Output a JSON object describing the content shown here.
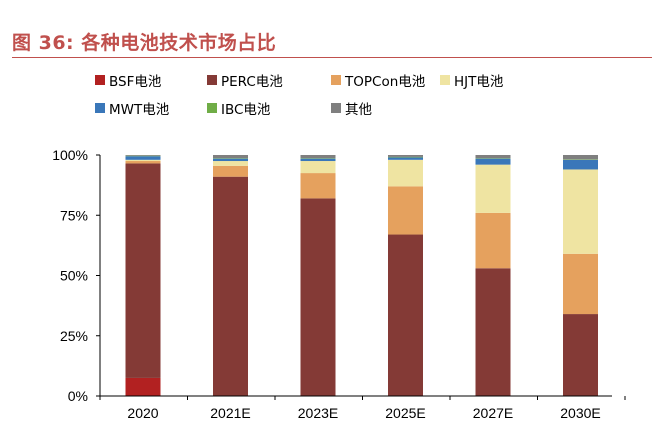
{
  "header": {
    "figure_title": "图 36: 各种电池技术市场占比"
  },
  "colors": {
    "title": "#c0504d",
    "axis": "#000000"
  },
  "chart_data": {
    "type": "bar",
    "stacked": true,
    "categories": [
      "2020",
      "2021E",
      "2023E",
      "2025E",
      "2027E",
      "2030E"
    ],
    "y_ticks": [
      "0%",
      "25%",
      "50%",
      "75%",
      "100%"
    ],
    "ylim": [
      0,
      100
    ],
    "grid": false,
    "legend_position": "top-left",
    "series": [
      {
        "name": "BSF电池",
        "color": "#b22121",
        "values": [
          7.5,
          0,
          0,
          0,
          0,
          0
        ]
      },
      {
        "name": "PERC电池",
        "color": "#843a36",
        "values": [
          89,
          91,
          82,
          67,
          53,
          34
        ]
      },
      {
        "name": "TOPCon电池",
        "color": "#e5a15e",
        "values": [
          1,
          4.5,
          10.5,
          20,
          23,
          25
        ]
      },
      {
        "name": "HJT电池",
        "color": "#efe4a2",
        "values": [
          0.5,
          2,
          5,
          11,
          20,
          35
        ]
      },
      {
        "name": "MWT电池",
        "color": "#3a77b9",
        "values": [
          1.5,
          1,
          1,
          1,
          2.5,
          4
        ]
      },
      {
        "name": "IBC电池",
        "color": "#70ad47",
        "values": [
          0.2,
          0.2,
          0.2,
          0.2,
          0.2,
          0.2
        ]
      },
      {
        "name": "其他",
        "color": "#7f7f7f",
        "values": [
          0.3,
          1.3,
          1.3,
          0.8,
          1.3,
          1.8
        ]
      }
    ]
  }
}
